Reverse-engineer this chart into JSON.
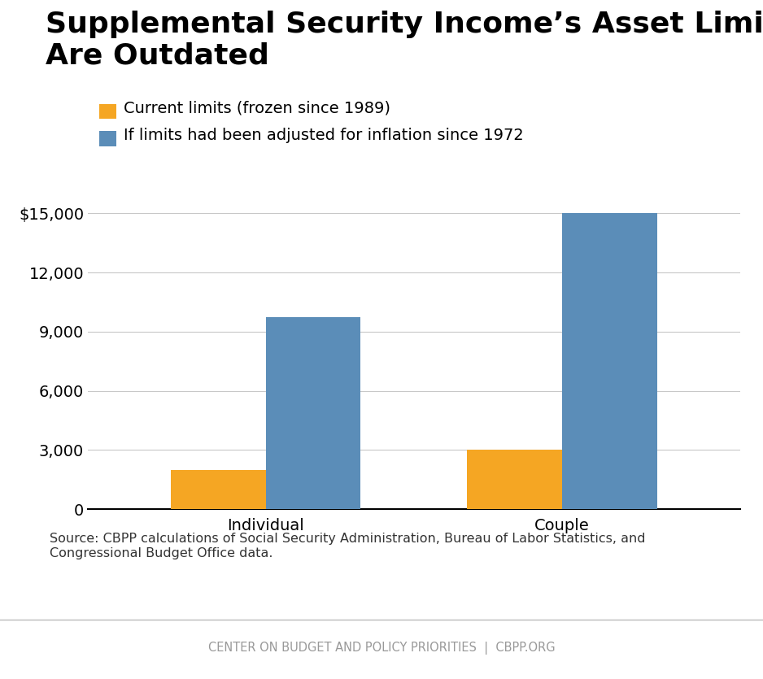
{
  "title_line1": "Supplemental Security Income’s Asset Limits",
  "title_line2": "Are Outdated",
  "categories": [
    "Individual",
    "Couple"
  ],
  "current_limits": [
    2000,
    3000
  ],
  "inflation_limits": [
    9750,
    15000
  ],
  "current_color": "#F5A623",
  "inflation_color": "#5B8DB8",
  "legend_labels": [
    "Current limits (frozen since 1989)",
    "If limits had been adjusted for inflation since 1972"
  ],
  "ylim": [
    0,
    16000
  ],
  "yticks": [
    0,
    3000,
    6000,
    9000,
    12000,
    15000
  ],
  "ytick_labels": [
    "0",
    "3,000",
    "6,000",
    "9,000",
    "12,000",
    "$15,000"
  ],
  "source_text": "Source: CBPP calculations of Social Security Administration, Bureau of Labor Statistics, and\nCongressional Budget Office data.",
  "footer_text": "CENTER ON BUDGET AND POLICY PRIORITIES  |  CBPP.ORG",
  "background_color": "#FFFFFF",
  "bar_width": 0.32,
  "title_fontsize": 26,
  "axis_fontsize": 14,
  "legend_fontsize": 14,
  "source_fontsize": 11.5,
  "footer_fontsize": 10.5
}
